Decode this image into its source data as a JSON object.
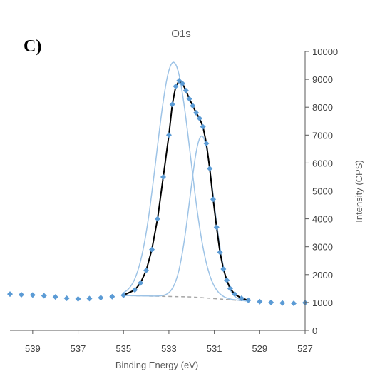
{
  "panel_label": "C)",
  "chart_data": {
    "type": "scatter",
    "title": "O1s",
    "xlabel": "Binding Energy (eV)",
    "ylabel": "Intensity (CPS)",
    "xlim": [
      540,
      527
    ],
    "x_reversed": true,
    "ylim": [
      0,
      10000
    ],
    "x_ticks": [
      539,
      537,
      535,
      533,
      531,
      529,
      527
    ],
    "y_ticks": [
      0,
      1000,
      2000,
      3000,
      4000,
      5000,
      6000,
      7000,
      8000,
      9000,
      10000
    ],
    "y_axis_position": "right",
    "grid": false,
    "legend": "none",
    "colors": {
      "data_points": "#5b9bd5",
      "envelope": "#000000",
      "components": "#9dc3e6",
      "background": "#a5a5a5",
      "axis": "#595959"
    },
    "series": [
      {
        "kind": "measured-points",
        "points": [
          [
            540.0,
            1300
          ],
          [
            539.5,
            1280
          ],
          [
            539.0,
            1270
          ],
          [
            538.5,
            1240
          ],
          [
            538.0,
            1200
          ],
          [
            537.5,
            1150
          ],
          [
            537.0,
            1130
          ],
          [
            536.5,
            1140
          ],
          [
            536.0,
            1170
          ],
          [
            535.5,
            1210
          ],
          [
            535.0,
            1260
          ],
          [
            534.5,
            1450
          ],
          [
            534.25,
            1700
          ],
          [
            534.0,
            2150
          ],
          [
            533.75,
            2900
          ],
          [
            533.5,
            4000
          ],
          [
            533.25,
            5500
          ],
          [
            533.0,
            7000
          ],
          [
            532.85,
            8100
          ],
          [
            532.7,
            8750
          ],
          [
            532.55,
            8950
          ],
          [
            532.4,
            8850
          ],
          [
            532.25,
            8600
          ],
          [
            532.1,
            8300
          ],
          [
            531.95,
            8050
          ],
          [
            531.8,
            7800
          ],
          [
            531.65,
            7600
          ],
          [
            531.5,
            7300
          ],
          [
            531.35,
            6700
          ],
          [
            531.2,
            5800
          ],
          [
            531.05,
            4700
          ],
          [
            530.9,
            3700
          ],
          [
            530.75,
            2800
          ],
          [
            530.6,
            2200
          ],
          [
            530.45,
            1800
          ],
          [
            530.3,
            1500
          ],
          [
            530.1,
            1300
          ],
          [
            529.8,
            1150
          ],
          [
            529.5,
            1080
          ],
          [
            529.0,
            1030
          ],
          [
            528.5,
            1000
          ],
          [
            528.0,
            980
          ],
          [
            527.5,
            970
          ],
          [
            527.0,
            990
          ]
        ]
      },
      {
        "kind": "fit-component",
        "center": 532.8,
        "height": 8400,
        "fwhm": 1.75
      },
      {
        "kind": "fit-component",
        "center": 531.55,
        "height": 5800,
        "fwhm": 1.25
      },
      {
        "kind": "background",
        "points": [
          [
            535.0,
            1250
          ],
          [
            532.0,
            1200
          ],
          [
            530.0,
            1080
          ],
          [
            529.5,
            1050
          ]
        ]
      }
    ]
  }
}
